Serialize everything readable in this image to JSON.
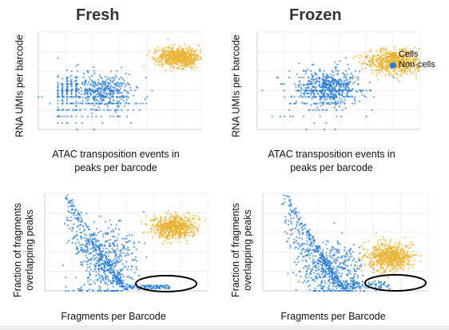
{
  "titles": {
    "left": "Fresh",
    "right": "Frozen"
  },
  "labels": {
    "rna_y": "RNA UMIs per barcode",
    "atac_x_line1": "ATAC transposition events in",
    "atac_x_line2": "peaks per barcode",
    "frac_y_line1": "Fraction of fragments",
    "frac_y_line2": "overlapping peaks",
    "frag_x": "Fragments per Barcode"
  },
  "legend": {
    "cells": "Cells",
    "noncells": "Non-cells"
  },
  "colors": {
    "cells": "#e8b53a",
    "noncells": "#2f7fd1",
    "axis": "#cccccc",
    "grid": "#e6e6e6",
    "tick": "#888888",
    "annotation": "#000000"
  },
  "chart_data": [
    {
      "type": "scatter",
      "panel": "fresh-rna-vs-atac",
      "xscale": "log",
      "yscale": "log",
      "xlim": [
        1,
        100000
      ],
      "ylim": [
        1,
        100000
      ],
      "grid": true,
      "series": [
        {
          "name": "Cells",
          "color": "#e8b53a",
          "center": [
            20000,
            5000
          ],
          "spread": [
            0.35,
            0.25
          ]
        },
        {
          "name": "Non-cells",
          "color": "#2f7fd1",
          "center": [
            60,
            40
          ],
          "spread": [
            0.7,
            0.7
          ]
        }
      ]
    },
    {
      "type": "scatter",
      "panel": "frozen-rna-vs-atac",
      "xscale": "log",
      "yscale": "log",
      "xlim": [
        1,
        100000
      ],
      "ylim": [
        1,
        100000
      ],
      "grid": true,
      "legend": "top-right",
      "series": [
        {
          "name": "Cells",
          "color": "#e8b53a",
          "center": [
            15000,
            3000
          ],
          "spread": [
            0.4,
            0.3
          ]
        },
        {
          "name": "Non-cells",
          "color": "#2f7fd1",
          "center": [
            100,
            60
          ],
          "spread": [
            0.75,
            0.7
          ]
        }
      ]
    },
    {
      "type": "scatter",
      "panel": "fresh-fraction-vs-fragments",
      "xscale": "log",
      "yscale": "linear",
      "xlim": [
        1,
        1000000
      ],
      "ylim": [
        0,
        1
      ],
      "grid": true,
      "annotation": "ellipse around low-fraction high-fragment barcodes",
      "series": [
        {
          "name": "Cells",
          "color": "#e8b53a",
          "center": [
            60000,
            0.65
          ],
          "spread": [
            0.4,
            0.06
          ]
        },
        {
          "name": "Non-cells",
          "color": "#2f7fd1",
          "center": [
            200,
            0.3
          ],
          "spread": [
            0.55,
            0.2
          ]
        }
      ]
    },
    {
      "type": "scatter",
      "panel": "frozen-fraction-vs-fragments",
      "xscale": "log",
      "yscale": "linear",
      "xlim": [
        1,
        1000000
      ],
      "ylim": [
        0,
        1
      ],
      "grid": true,
      "annotation": "ellipse around low-fraction high-fragment barcodes",
      "series": [
        {
          "name": "Cells",
          "color": "#e8b53a",
          "center": [
            40000,
            0.35
          ],
          "spread": [
            0.4,
            0.07
          ]
        },
        {
          "name": "Non-cells",
          "color": "#2f7fd1",
          "center": [
            300,
            0.2
          ],
          "spread": [
            0.6,
            0.15
          ]
        }
      ]
    }
  ]
}
